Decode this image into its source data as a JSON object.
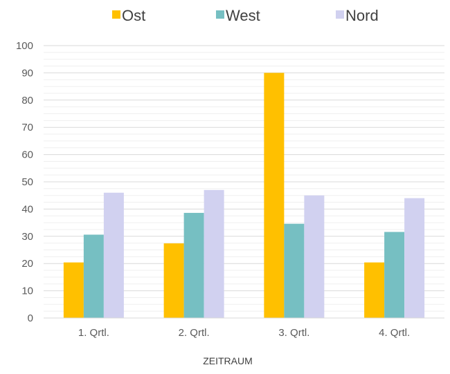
{
  "chart_data": {
    "type": "bar",
    "categories": [
      "1. Qrtl.",
      "2. Qrtl.",
      "3. Qrtl.",
      "4. Qrtl."
    ],
    "series": [
      {
        "name": "Ost",
        "color": "#FFC000",
        "values": [
          20.4,
          27.4,
          90,
          20.4
        ]
      },
      {
        "name": "West",
        "color": "#76BFC2",
        "values": [
          30.6,
          38.6,
          34.6,
          31.6
        ]
      },
      {
        "name": "Nord",
        "color": "#D1D1F0",
        "values": [
          46,
          47,
          45,
          44
        ]
      }
    ],
    "xlabel": "ZEITRAUM",
    "ylabel": "",
    "ylim": [
      0,
      100
    ],
    "yticks": [
      0,
      10,
      20,
      30,
      40,
      50,
      60,
      70,
      80,
      90,
      100
    ],
    "grid": true,
    "minor_grid": true,
    "legend_position": "top"
  }
}
